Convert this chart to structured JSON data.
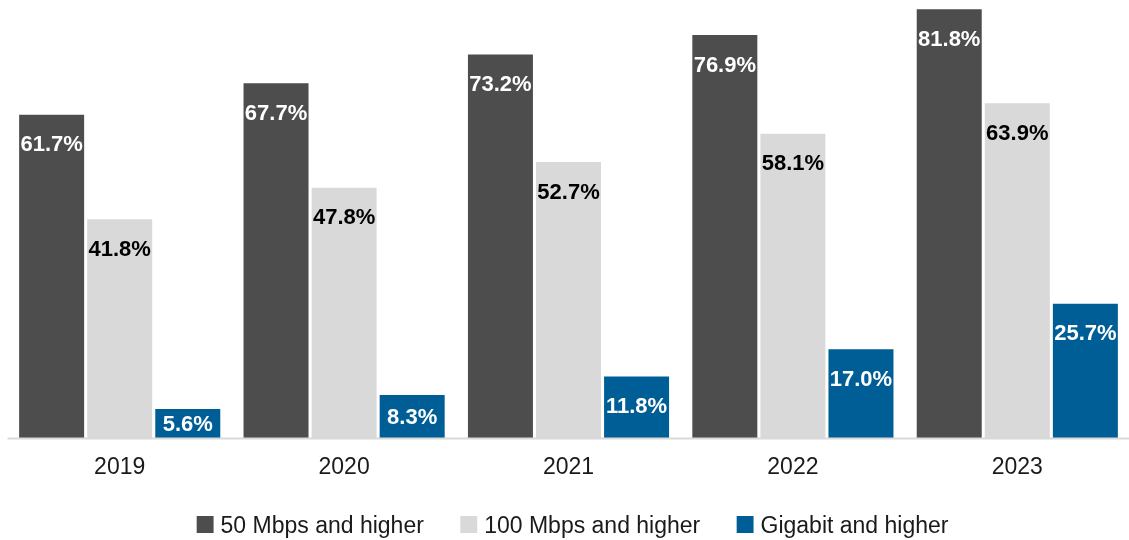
{
  "chart_data": {
    "type": "bar",
    "categories": [
      "2019",
      "2020",
      "2021",
      "2022",
      "2023"
    ],
    "series": [
      {
        "name": "50 Mbps and higher",
        "color": "#4d4d4d",
        "values": [
          61.7,
          67.7,
          73.2,
          76.9,
          81.8
        ],
        "value_labels": [
          "61.7%",
          "67.7%",
          "73.2%",
          "76.9%",
          "81.8%"
        ]
      },
      {
        "name": "100 Mbps and higher",
        "color": "#d9d9d9",
        "values": [
          41.8,
          47.8,
          52.7,
          58.1,
          63.9
        ],
        "value_labels": [
          "41.8%",
          "47.8%",
          "52.7%",
          "58.1%",
          "63.9%"
        ]
      },
      {
        "name": "Gigabit and higher",
        "color": "#005e96",
        "values": [
          5.6,
          8.3,
          11.8,
          17.0,
          25.7
        ],
        "value_labels": [
          "5.6%",
          "8.3%",
          "11.8%",
          "17.0%",
          "25.7%"
        ]
      }
    ],
    "legend": "bottom",
    "tick_labels": "x"
  }
}
